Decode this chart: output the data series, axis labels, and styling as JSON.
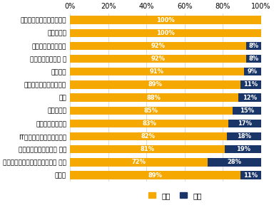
{
  "categories": [
    "マスコミ・広告・デザイン",
    "金融・保険",
    "不動産・建設・設備",
    "インフラ、官公庁 他",
    "サービス",
    "運輸・交通・物流・倉庫",
    "商社",
    "流通・小売",
    "コンサルティング",
    "IT・通信・インターネット",
    "メーカー（化学、鉄鈗 他）",
    "メーカー（電気、機械、自動車 他）",
    "その他"
  ],
  "aru": [
    100,
    100,
    92,
    92,
    91,
    89,
    88,
    85,
    83,
    82,
    81,
    72,
    89
  ],
  "nai": [
    0,
    0,
    8,
    8,
    9,
    11,
    12,
    15,
    17,
    18,
    19,
    28,
    11
  ],
  "color_aru": "#F5A800",
  "color_nai": "#1A3668",
  "background": "#FFFFFF",
  "legend_aru": "ある",
  "legend_nai": "ない",
  "bar_height": 0.62,
  "fontsize_label": 6.5,
  "fontsize_bar": 6.0,
  "fontsize_tick": 7.0,
  "fontsize_legend": 7.5
}
